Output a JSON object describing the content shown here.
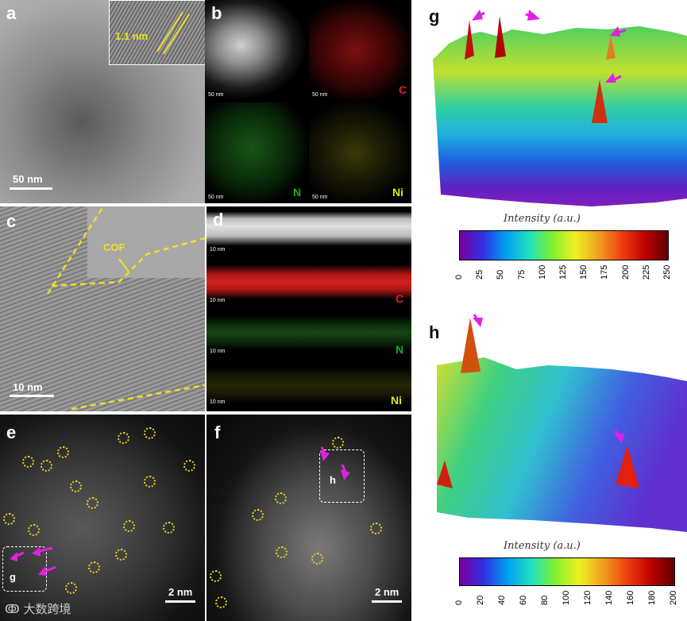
{
  "panels": {
    "a": {
      "label": "a",
      "scale": "50 nm",
      "inset_label": "1.1 nm"
    },
    "b": {
      "label": "b",
      "tiles": [
        {
          "scale": "50 nm",
          "element": ""
        },
        {
          "scale": "50 nm",
          "element": "C"
        },
        {
          "scale": "50 nm",
          "element": "N"
        },
        {
          "scale": "50 nm",
          "element": "Ni"
        }
      ]
    },
    "c": {
      "label": "c",
      "scale": "10 nm",
      "annotation": "COF"
    },
    "d": {
      "label": "d",
      "strips": [
        {
          "scale": "10 nm",
          "element": ""
        },
        {
          "scale": "10 nm",
          "element": "C"
        },
        {
          "scale": "10 nm",
          "element": "N"
        },
        {
          "scale": "10 nm",
          "element": "Ni"
        }
      ]
    },
    "e": {
      "label": "e",
      "scale": "2 nm",
      "box_label": "g"
    },
    "f": {
      "label": "f",
      "scale": "2 nm",
      "box_label": "h"
    },
    "g": {
      "label": "g"
    },
    "h": {
      "label": "h"
    }
  },
  "colorbar_g": {
    "title": "Intensity (a.u.)",
    "ticks": [
      "0",
      "25",
      "50",
      "75",
      "100",
      "125",
      "150",
      "175",
      "200",
      "225",
      "250"
    ]
  },
  "colorbar_h": {
    "title": "Intensity (a.u.)",
    "ticks": [
      "0",
      "20",
      "40",
      "60",
      "80",
      "100",
      "120",
      "140",
      "160",
      "180",
      "200"
    ]
  },
  "watermark": "大数跨境",
  "colors": {
    "annotation_yellow": "#e8d21a",
    "arrow_magenta": "#e020e0",
    "carbon_red": "#e02020",
    "nitrogen_green": "#22aa22",
    "nickel_yellow": "#e8e020"
  }
}
